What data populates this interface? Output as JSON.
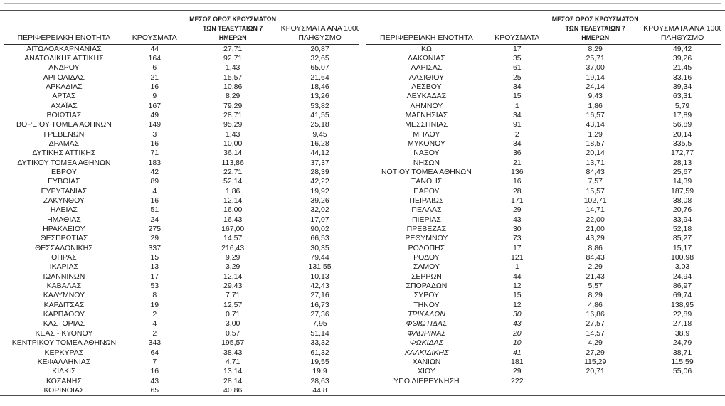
{
  "headers": {
    "region": "ΠΕΡΙΦΕΡΕΙΑΚΗ ΕΝΟΤΗΤΑ",
    "cases": "ΚΡΟΥΣΜΑΤΑ",
    "avg7_lines": [
      "ΜΕΣΟΣ ΟΡΟΣ ΚΡΟΥΣΜΑΤΩΝ",
      "ΤΩΝ ΤΕΛΕΥΤΑΙΩΝ 7",
      "ΗΜΕΡΩΝ"
    ],
    "per100k_lines": [
      "ΚΡΟΥΣΜΑΤΑ ΑΝΑ 100000",
      "ΠΛΗΘΥΣΜΟ"
    ]
  },
  "colors": {
    "text": "#1a1a1a",
    "rule_dark": "#4d4d4d",
    "rule_light": "#b5b5b5"
  },
  "tables": [
    {
      "name": "left",
      "rows": [
        {
          "region": "ΑΙΤΩΛΟΑΚΑΡΝΑΝΙΑΣ",
          "cases": "44",
          "avg7": "27,71",
          "per100k": "20,87",
          "italic": false
        },
        {
          "region": "ΑΝΑΤΟΛΙΚΗΣ ΑΤΤΙΚΗΣ",
          "cases": "164",
          "avg7": "92,71",
          "per100k": "32,65",
          "italic": false
        },
        {
          "region": "ΑΝΔΡΟΥ",
          "cases": "6",
          "avg7": "1,43",
          "per100k": "65,07",
          "italic": false
        },
        {
          "region": "ΑΡΓΟΛΙΔΑΣ",
          "cases": "21",
          "avg7": "15,57",
          "per100k": "21,64",
          "italic": false
        },
        {
          "region": "ΑΡΚΑΔΙΑΣ",
          "cases": "16",
          "avg7": "10,86",
          "per100k": "18,46",
          "italic": false
        },
        {
          "region": "ΑΡΤΑΣ",
          "cases": "9",
          "avg7": "8,29",
          "per100k": "13,26",
          "italic": false
        },
        {
          "region": "ΑΧΑΪΑΣ",
          "cases": "167",
          "avg7": "79,29",
          "per100k": "53,82",
          "italic": false
        },
        {
          "region": "ΒΟΙΩΤΙΑΣ",
          "cases": "49",
          "avg7": "28,71",
          "per100k": "41,55",
          "italic": false
        },
        {
          "region": "ΒΟΡΕΙΟΥ ΤΟΜΕΑ ΑΘΗΝΩΝ",
          "cases": "149",
          "avg7": "95,29",
          "per100k": "25,18",
          "italic": false
        },
        {
          "region": "ΓΡΕΒΕΝΩΝ",
          "cases": "3",
          "avg7": "1,43",
          "per100k": "9,45",
          "italic": false
        },
        {
          "region": "ΔΡΑΜΑΣ",
          "cases": "16",
          "avg7": "10,00",
          "per100k": "16,28",
          "italic": false
        },
        {
          "region": "ΔΥΤΙΚΗΣ ΑΤΤΙΚΗΣ",
          "cases": "71",
          "avg7": "36,14",
          "per100k": "44,12",
          "italic": false
        },
        {
          "region": "ΔΥΤΙΚΟΥ ΤΟΜΕΑ ΑΘΗΝΩΝ",
          "cases": "183",
          "avg7": "113,86",
          "per100k": "37,37",
          "italic": false
        },
        {
          "region": "ΕΒΡΟΥ",
          "cases": "42",
          "avg7": "22,71",
          "per100k": "28,39",
          "italic": false
        },
        {
          "region": "ΕΥΒΟΙΑΣ",
          "cases": "89",
          "avg7": "52,14",
          "per100k": "42,22",
          "italic": false
        },
        {
          "region": "ΕΥΡΥΤΑΝΙΑΣ",
          "cases": "4",
          "avg7": "1,86",
          "per100k": "19,92",
          "italic": false
        },
        {
          "region": "ΖΑΚΥΝΘΟΥ",
          "cases": "16",
          "avg7": "12,14",
          "per100k": "39,26",
          "italic": false
        },
        {
          "region": "ΗΛΕΙΑΣ",
          "cases": "51",
          "avg7": "16,00",
          "per100k": "32,02",
          "italic": false
        },
        {
          "region": "ΗΜΑΘΙΑΣ",
          "cases": "24",
          "avg7": "16,43",
          "per100k": "17,07",
          "italic": false
        },
        {
          "region": "ΗΡΑΚΛΕΙΟΥ",
          "cases": "275",
          "avg7": "167,00",
          "per100k": "90,02",
          "italic": false
        },
        {
          "region": "ΘΕΣΠΡΩΤΙΑΣ",
          "cases": "29",
          "avg7": "14,57",
          "per100k": "66,53",
          "italic": false
        },
        {
          "region": "ΘΕΣΣΑΛΟΝΙΚΗΣ",
          "cases": "337",
          "avg7": "216,43",
          "per100k": "30,35",
          "italic": false
        },
        {
          "region": "ΘΗΡΑΣ",
          "cases": "15",
          "avg7": "9,29",
          "per100k": "79,44",
          "italic": false
        },
        {
          "region": "ΙΚΑΡΙΑΣ",
          "cases": "13",
          "avg7": "3,29",
          "per100k": "131,55",
          "italic": false
        },
        {
          "region": "ΙΩΑΝΝΙΝΩΝ",
          "cases": "17",
          "avg7": "12,14",
          "per100k": "10,13",
          "italic": false
        },
        {
          "region": "ΚΑΒΑΛΑΣ",
          "cases": "53",
          "avg7": "29,43",
          "per100k": "42,43",
          "italic": false
        },
        {
          "region": "ΚΑΛΥΜΝΟΥ",
          "cases": "8",
          "avg7": "7,71",
          "per100k": "27,16",
          "italic": false
        },
        {
          "region": "ΚΑΡΔΙΤΣΑΣ",
          "cases": "19",
          "avg7": "12,57",
          "per100k": "16,73",
          "italic": false
        },
        {
          "region": "ΚΑΡΠΑΘΟΥ",
          "cases": "2",
          "avg7": "0,71",
          "per100k": "27,36",
          "italic": false
        },
        {
          "region": "ΚΑΣΤΟΡΙΑΣ",
          "cases": "4",
          "avg7": "3,00",
          "per100k": "7,95",
          "italic": false
        },
        {
          "region": "ΚΕΑΣ - ΚΥΘΝΟΥ",
          "cases": "2",
          "avg7": "0,57",
          "per100k": "51,14",
          "italic": false
        },
        {
          "region": "ΚΕΝΤΡΙΚΟΥ ΤΟΜΕΑ ΑΘΗΝΩΝ",
          "cases": "343",
          "avg7": "195,57",
          "per100k": "33,32",
          "italic": false
        },
        {
          "region": "ΚΕΡΚΥΡΑΣ",
          "cases": "64",
          "avg7": "38,43",
          "per100k": "61,32",
          "italic": false
        },
        {
          "region": "ΚΕΦΑΛΛΗΝΙΑΣ",
          "cases": "7",
          "avg7": "4,71",
          "per100k": "19,55",
          "italic": false
        },
        {
          "region": "ΚΙΛΚΙΣ",
          "cases": "16",
          "avg7": "13,14",
          "per100k": "19,9",
          "italic": false
        },
        {
          "region": "ΚΟΖΑΝΗΣ",
          "cases": "43",
          "avg7": "28,14",
          "per100k": "28,63",
          "italic": false
        },
        {
          "region": "ΚΟΡΙΝΘΙΑΣ",
          "cases": "65",
          "avg7": "40,86",
          "per100k": "44,8",
          "italic": false
        }
      ]
    },
    {
      "name": "right",
      "rows": [
        {
          "region": "ΚΩ",
          "cases": "17",
          "avg7": "8,29",
          "per100k": "49,42",
          "italic": false
        },
        {
          "region": "ΛΑΚΩΝΙΑΣ",
          "cases": "35",
          "avg7": "25,71",
          "per100k": "39,26",
          "italic": false
        },
        {
          "region": "ΛΑΡΙΣΑΣ",
          "cases": "61",
          "avg7": "37,00",
          "per100k": "21,45",
          "italic": false
        },
        {
          "region": "ΛΑΣΙΘΙΟΥ",
          "cases": "25",
          "avg7": "19,14",
          "per100k": "33,16",
          "italic": false
        },
        {
          "region": "ΛΕΣΒΟΥ",
          "cases": "34",
          "avg7": "24,14",
          "per100k": "39,34",
          "italic": false
        },
        {
          "region": "ΛΕΥΚΑΔΑΣ",
          "cases": "15",
          "avg7": "9,43",
          "per100k": "63,31",
          "italic": false
        },
        {
          "region": "ΛΗΜΝΟΥ",
          "cases": "1",
          "avg7": "1,86",
          "per100k": "5,79",
          "italic": false
        },
        {
          "region": "ΜΑΓΝΗΣΙΑΣ",
          "cases": "34",
          "avg7": "16,57",
          "per100k": "17,89",
          "italic": false
        },
        {
          "region": "ΜΕΣΣΗΝΙΑΣ",
          "cases": "91",
          "avg7": "43,14",
          "per100k": "56,89",
          "italic": false
        },
        {
          "region": "ΜΗΛΟΥ",
          "cases": "2",
          "avg7": "1,29",
          "per100k": "20,14",
          "italic": false
        },
        {
          "region": "ΜΥΚΟΝΟΥ",
          "cases": "34",
          "avg7": "18,57",
          "per100k": "335,5",
          "italic": false
        },
        {
          "region": "ΝΑΞΟΥ",
          "cases": "36",
          "avg7": "20,14",
          "per100k": "172,77",
          "italic": false
        },
        {
          "region": "ΝΗΣΩΝ",
          "cases": "21",
          "avg7": "13,71",
          "per100k": "28,13",
          "italic": false
        },
        {
          "region": "ΝΟΤΙΟΥ ΤΟΜΕΑ ΑΘΗΝΩΝ",
          "cases": "136",
          "avg7": "84,43",
          "per100k": "25,67",
          "italic": false
        },
        {
          "region": "ΞΑΝΘΗΣ",
          "cases": "16",
          "avg7": "7,57",
          "per100k": "14,39",
          "italic": false
        },
        {
          "region": "ΠΑΡΟΥ",
          "cases": "28",
          "avg7": "15,57",
          "per100k": "187,59",
          "italic": false
        },
        {
          "region": "ΠΕΙΡΑΙΩΣ",
          "cases": "171",
          "avg7": "102,71",
          "per100k": "38,08",
          "italic": false
        },
        {
          "region": "ΠΕΛΛΑΣ",
          "cases": "29",
          "avg7": "14,71",
          "per100k": "20,76",
          "italic": false
        },
        {
          "region": "ΠΙΕΡΙΑΣ",
          "cases": "43",
          "avg7": "22,00",
          "per100k": "33,94",
          "italic": false
        },
        {
          "region": "ΠΡΕΒΕΖΑΣ",
          "cases": "30",
          "avg7": "21,00",
          "per100k": "52,18",
          "italic": false
        },
        {
          "region": "ΡΕΘΥΜΝΟΥ",
          "cases": "73",
          "avg7": "43,29",
          "per100k": "85,27",
          "italic": false
        },
        {
          "region": "ΡΟΔΟΠΗΣ",
          "cases": "17",
          "avg7": "8,86",
          "per100k": "15,17",
          "italic": false
        },
        {
          "region": "ΡΟΔΟΥ",
          "cases": "121",
          "avg7": "84,43",
          "per100k": "100,98",
          "italic": false
        },
        {
          "region": "ΣΑΜΟΥ",
          "cases": "1",
          "avg7": "2,29",
          "per100k": "3,03",
          "italic": false
        },
        {
          "region": "ΣΕΡΡΩΝ",
          "cases": "44",
          "avg7": "21,43",
          "per100k": "24,94",
          "italic": false
        },
        {
          "region": "ΣΠΟΡΑΔΩΝ",
          "cases": "12",
          "avg7": "5,57",
          "per100k": "86,97",
          "italic": false
        },
        {
          "region": "ΣΥΡΟΥ",
          "cases": "15",
          "avg7": "8,29",
          "per100k": "69,74",
          "italic": false
        },
        {
          "region": "ΤΗΝΟΥ",
          "cases": "12",
          "avg7": "4,86",
          "per100k": "138,95",
          "italic": false
        },
        {
          "region": "ΤΡΙΚΑΛΩΝ",
          "cases": "30",
          "avg7": "16,86",
          "per100k": "22,89",
          "italic": true
        },
        {
          "region": "ΦΘΙΩΤΙΔΑΣ",
          "cases": "43",
          "avg7": "27,57",
          "per100k": "27,18",
          "italic": true
        },
        {
          "region": "ΦΛΩΡΙΝΑΣ",
          "cases": "20",
          "avg7": "14,57",
          "per100k": "38,9",
          "italic": true
        },
        {
          "region": "ΦΩΚΙΔΑΣ",
          "cases": "10",
          "avg7": "4,29",
          "per100k": "24,79",
          "italic": true
        },
        {
          "region": "ΧΑΛΚΙΔΙΚΗΣ",
          "cases": "41",
          "avg7": "27,29",
          "per100k": "38,71",
          "italic": true
        },
        {
          "region": "ΧΑΝΙΩΝ",
          "cases": "181",
          "avg7": "115,29",
          "per100k": "115,59",
          "italic": false
        },
        {
          "region": "ΧΙΟΥ",
          "cases": "29",
          "avg7": "20,71",
          "per100k": "55,06",
          "italic": false
        },
        {
          "region": "ΥΠΟ ΔΙΕΡΕΥΝΗΣΗ",
          "cases": "222",
          "avg7": "",
          "per100k": "",
          "italic": false
        }
      ]
    }
  ]
}
